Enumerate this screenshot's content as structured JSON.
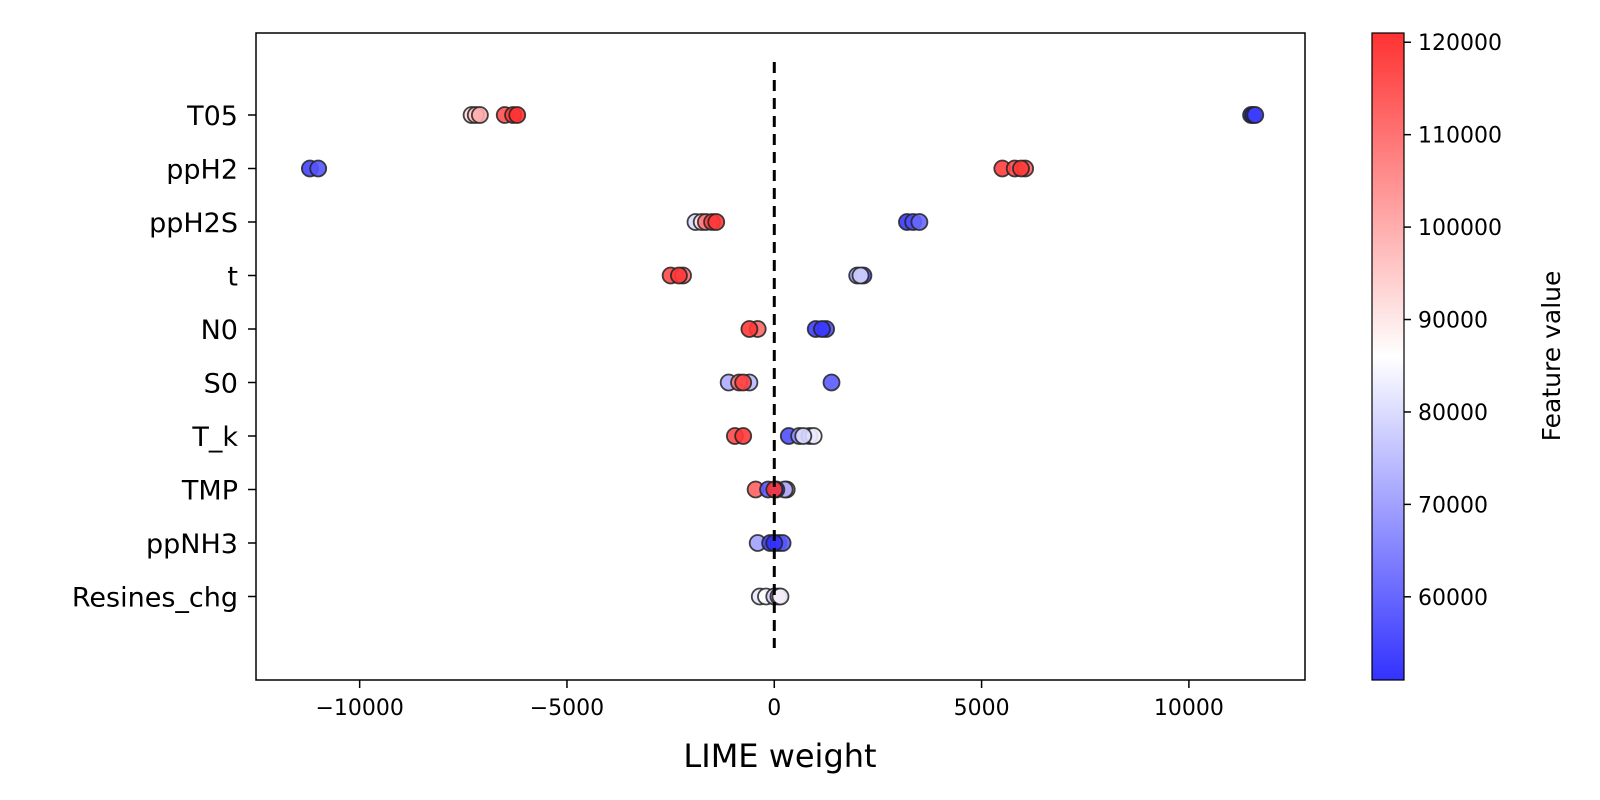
{
  "chart_data": {
    "type": "scatter",
    "title": "",
    "xlabel": "LIME weight",
    "ylabel": "",
    "xlim": [
      -12500,
      12800
    ],
    "xticks": [
      -10000,
      -5000,
      0,
      5000,
      10000
    ],
    "xtick_labels": [
      "−10000",
      "−5000",
      "0",
      "5000",
      "10000"
    ],
    "grid": false,
    "reference_line": {
      "x": 0,
      "style": "dashed"
    },
    "categories": [
      "T05",
      "ppH2",
      "ppH2S",
      "t",
      "N0",
      "S0",
      "T_k",
      "TMP",
      "ppNH3",
      "Resines_chg"
    ],
    "colorbar": {
      "label": "Feature value",
      "range": [
        51000,
        121000
      ],
      "ticks": [
        60000,
        70000,
        80000,
        90000,
        100000,
        110000,
        120000
      ],
      "colors": {
        "low": "#3232ff",
        "mid": "#ffffff",
        "high": "#ff3232"
      }
    },
    "points": [
      {
        "feature": "T05",
        "x": -7300,
        "value": 92000
      },
      {
        "feature": "T05",
        "x": -7200,
        "value": 96000
      },
      {
        "feature": "T05",
        "x": -7100,
        "value": 100000
      },
      {
        "feature": "T05",
        "x": -6500,
        "value": 116000
      },
      {
        "feature": "T05",
        "x": -6300,
        "value": 119000
      },
      {
        "feature": "T05",
        "x": -6200,
        "value": 121000
      },
      {
        "feature": "T05",
        "x": 11500,
        "value": 52000
      },
      {
        "feature": "T05",
        "x": 11550,
        "value": 52000
      },
      {
        "feature": "T05",
        "x": 11600,
        "value": 53000
      },
      {
        "feature": "ppH2",
        "x": -11200,
        "value": 54000
      },
      {
        "feature": "ppH2",
        "x": -11000,
        "value": 57000
      },
      {
        "feature": "ppH2",
        "x": 5500,
        "value": 119000
      },
      {
        "feature": "ppH2",
        "x": 5800,
        "value": 117000
      },
      {
        "feature": "ppH2",
        "x": 6050,
        "value": 113000
      },
      {
        "feature": "ppH2",
        "x": 5950,
        "value": 120000
      },
      {
        "feature": "ppH2S",
        "x": -1900,
        "value": 80000
      },
      {
        "feature": "ppH2S",
        "x": -1750,
        "value": 92000
      },
      {
        "feature": "ppH2S",
        "x": -1650,
        "value": 110000
      },
      {
        "feature": "ppH2S",
        "x": -1500,
        "value": 118000
      },
      {
        "feature": "ppH2S",
        "x": -1400,
        "value": 120000
      },
      {
        "feature": "ppH2S",
        "x": 3200,
        "value": 52000
      },
      {
        "feature": "ppH2S",
        "x": 3350,
        "value": 56000
      },
      {
        "feature": "ppH2S",
        "x": 3500,
        "value": 60000
      },
      {
        "feature": "t",
        "x": -2500,
        "value": 117000
      },
      {
        "feature": "t",
        "x": -2200,
        "value": 111000
      },
      {
        "feature": "t",
        "x": -2300,
        "value": 120000
      },
      {
        "feature": "t",
        "x": 2000,
        "value": 70000
      },
      {
        "feature": "t",
        "x": 2150,
        "value": 56000
      },
      {
        "feature": "t",
        "x": 2080,
        "value": 79000
      },
      {
        "feature": "N0",
        "x": -400,
        "value": 112000
      },
      {
        "feature": "N0",
        "x": -600,
        "value": 120000
      },
      {
        "feature": "N0",
        "x": 1000,
        "value": 53000
      },
      {
        "feature": "N0",
        "x": 1250,
        "value": 56000
      },
      {
        "feature": "N0",
        "x": 1150,
        "value": 52000
      },
      {
        "feature": "S0",
        "x": -1100,
        "value": 72000
      },
      {
        "feature": "S0",
        "x": -600,
        "value": 74000
      },
      {
        "feature": "S0",
        "x": -850,
        "value": 110000
      },
      {
        "feature": "S0",
        "x": -750,
        "value": 118000
      },
      {
        "feature": "S0",
        "x": 1380,
        "value": 58000
      },
      {
        "feature": "T_k",
        "x": -950,
        "value": 117000
      },
      {
        "feature": "T_k",
        "x": -750,
        "value": 120000
      },
      {
        "feature": "T_k",
        "x": 350,
        "value": 56000
      },
      {
        "feature": "T_k",
        "x": 600,
        "value": 68000
      },
      {
        "feature": "T_k",
        "x": 850,
        "value": 64000
      },
      {
        "feature": "T_k",
        "x": 950,
        "value": 84000
      },
      {
        "feature": "T_k",
        "x": 700,
        "value": 80000
      },
      {
        "feature": "TMP",
        "x": -450,
        "value": 113000
      },
      {
        "feature": "TMP",
        "x": 300,
        "value": 104000
      },
      {
        "feature": "TMP",
        "x": 250,
        "value": 72000
      },
      {
        "feature": "TMP",
        "x": -150,
        "value": 58000
      },
      {
        "feature": "TMP",
        "x": 50,
        "value": 52000
      },
      {
        "feature": "TMP",
        "x": 0,
        "value": 120000
      },
      {
        "feature": "ppNH3",
        "x": -400,
        "value": 70000
      },
      {
        "feature": "ppNH3",
        "x": -100,
        "value": 54000
      },
      {
        "feature": "ppNH3",
        "x": 100,
        "value": 52000
      },
      {
        "feature": "ppNH3",
        "x": 200,
        "value": 58000
      },
      {
        "feature": "ppNH3",
        "x": 0,
        "value": 51000
      },
      {
        "feature": "Resines_chg",
        "x": -350,
        "value": 82000
      },
      {
        "feature": "Resines_chg",
        "x": -200,
        "value": 86000
      },
      {
        "feature": "Resines_chg",
        "x": 0,
        "value": 78000
      },
      {
        "feature": "Resines_chg",
        "x": 100,
        "value": 100000
      },
      {
        "feature": "Resines_chg",
        "x": 150,
        "value": 84000
      }
    ]
  }
}
